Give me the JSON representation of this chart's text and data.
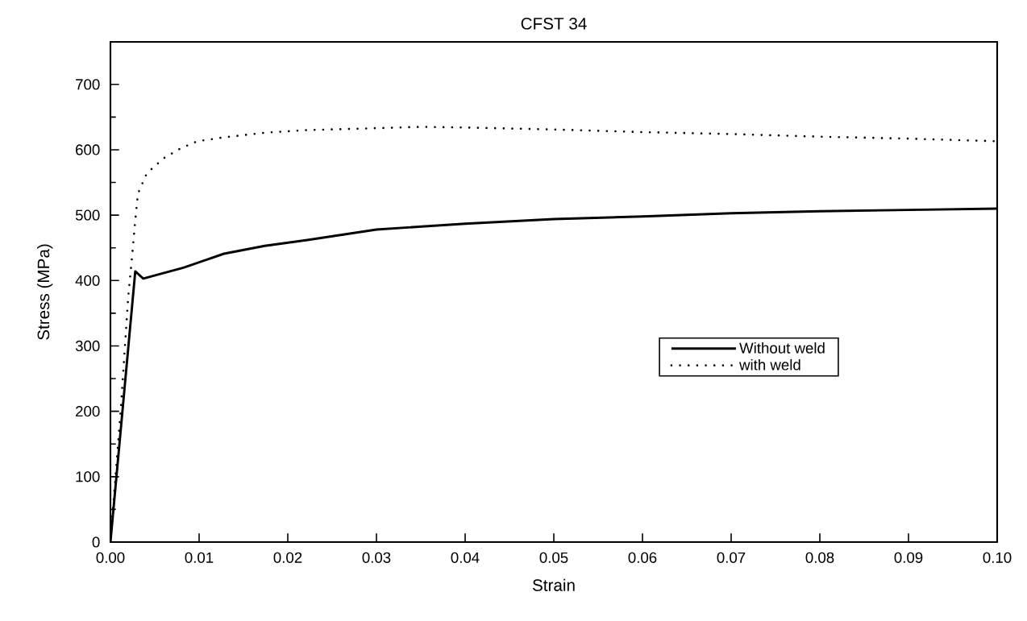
{
  "chart_data": {
    "type": "line",
    "title": "CFST 34",
    "xlabel": "Strain",
    "ylabel": "Stress (MPa)",
    "xlim": [
      0,
      0.1
    ],
    "ylim": [
      0,
      765
    ],
    "xticks": [
      {
        "value": 0,
        "label": "0.00"
      },
      {
        "value": 0.01,
        "label": "0.01"
      },
      {
        "value": 0.02,
        "label": "0.02"
      },
      {
        "value": 0.03,
        "label": "0.03"
      },
      {
        "value": 0.04,
        "label": "0.04"
      },
      {
        "value": 0.05,
        "label": "0.05"
      },
      {
        "value": 0.06,
        "label": "0.06"
      },
      {
        "value": 0.07,
        "label": "0.07"
      },
      {
        "value": 0.08,
        "label": "0.08"
      },
      {
        "value": 0.09,
        "label": "0.09"
      },
      {
        "value": 0.1,
        "label": "0.10"
      }
    ],
    "yticks": [
      0,
      100,
      200,
      300,
      400,
      500,
      600,
      700
    ],
    "legend": "right",
    "grid": false,
    "series": [
      {
        "name": "Without weld",
        "color": "#000000",
        "line_style": "solid",
        "x": [
          0,
          0.0028,
          0.0037,
          0.0083,
          0.0128,
          0.0174,
          0.0222,
          0.03,
          0.04,
          0.05,
          0.06,
          0.07,
          0.08,
          0.09,
          0.1
        ],
        "values": [
          0,
          414,
          403,
          420,
          441,
          453,
          462,
          478,
          487,
          494,
          498,
          503,
          506,
          508,
          510
        ]
      },
      {
        "name": "with weld",
        "color": "#000000",
        "line_style": "dotted",
        "x": [
          0,
          0.0012,
          0.002,
          0.0024,
          0.0028,
          0.0031,
          0.0041,
          0.006,
          0.0079,
          0.0098,
          0.0128,
          0.0174,
          0.022,
          0.03,
          0.035,
          0.04,
          0.05,
          0.06,
          0.07,
          0.08,
          0.09,
          0.1
        ],
        "values": [
          0,
          210,
          374,
          431,
          492,
          533,
          564,
          587,
          602,
          613,
          619,
          626,
          630,
          633,
          635,
          634,
          631,
          627,
          624,
          620,
          617,
          613
        ]
      }
    ]
  }
}
